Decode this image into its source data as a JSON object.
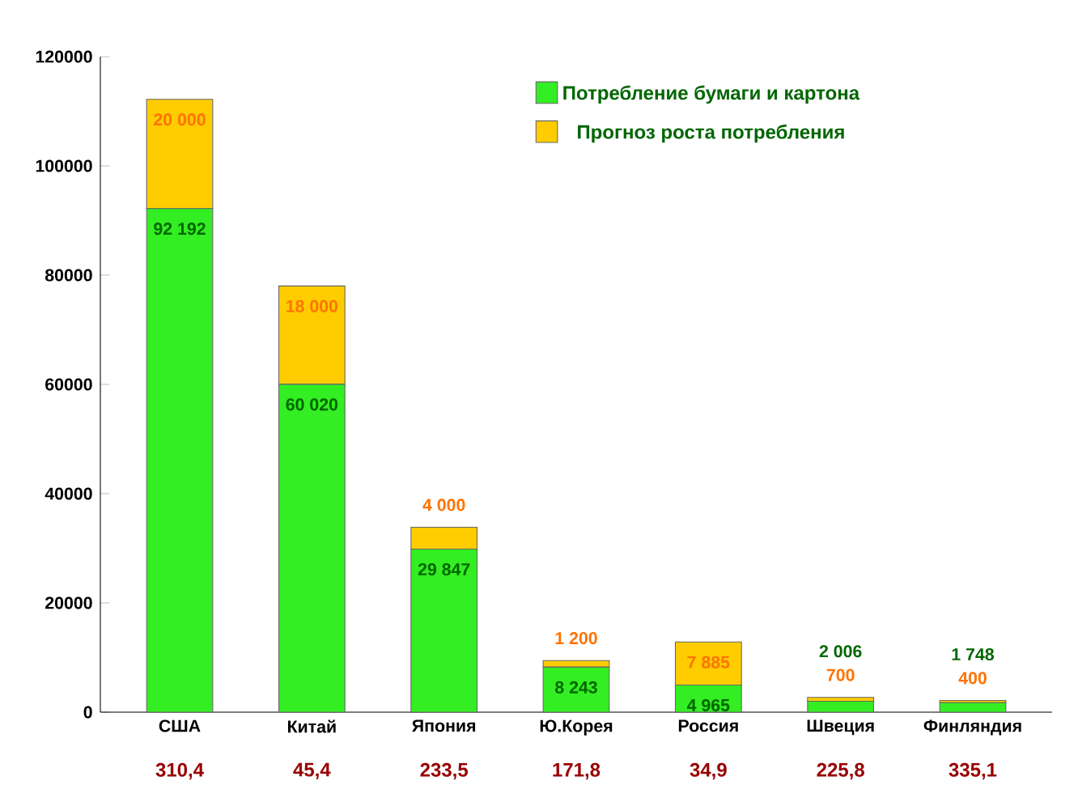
{
  "chart_data": {
    "type": "bar",
    "stacked": true,
    "categories": [
      "США",
      "Китай",
      "Япония",
      "Ю.Корея",
      "Россия",
      "Швеция",
      "Финляндия"
    ],
    "series": [
      {
        "name": "Потребление бумаги и картона",
        "color": "#33ee22",
        "values": [
          92192,
          60020,
          29847,
          8243,
          4965,
          2006,
          1748
        ],
        "value_labels": [
          "92 192",
          "60 020",
          "29 847",
          "8 243",
          "4 965",
          "2 006",
          "1 748"
        ]
      },
      {
        "name": "Прогноз роста потребления",
        "color": "#ffcc00",
        "values": [
          20000,
          18000,
          4000,
          1200,
          7885,
          700,
          400
        ],
        "value_labels": [
          "20 000",
          "18 000",
          "4 000",
          "1 200",
          "7 885",
          "700",
          "400"
        ]
      }
    ],
    "ylim": [
      0,
      120000
    ],
    "yticks": [
      0,
      20000,
      40000,
      60000,
      80000,
      100000,
      120000
    ],
    "grid": false,
    "legend": "top right",
    "annotations": [
      "310,4",
      "45,4",
      "233,5",
      "171,8",
      "34,9",
      "225,8",
      "335,1"
    ]
  }
}
